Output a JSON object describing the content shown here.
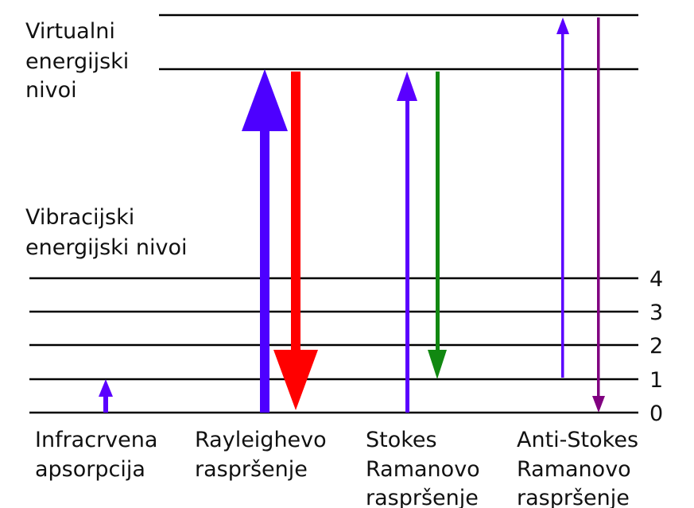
{
  "virtual_levels_label": [
    "Virtualni",
    "energijski",
    "nivoi"
  ],
  "vibrational_levels_label": [
    "Vibracijski",
    "energijski nivoi"
  ],
  "levels": [
    "4",
    "3",
    "2",
    "1",
    "0"
  ],
  "processes": [
    {
      "label": [
        "Infracrvena",
        "apsorpcija"
      ]
    },
    {
      "label": [
        "Rayleighevo",
        "raspršenje"
      ]
    },
    {
      "label": [
        "Stokes",
        "Ramanovo",
        "raspršenje"
      ]
    },
    {
      "label": [
        "Anti-Stokes",
        "Ramanovo",
        "raspršenje"
      ]
    }
  ]
}
